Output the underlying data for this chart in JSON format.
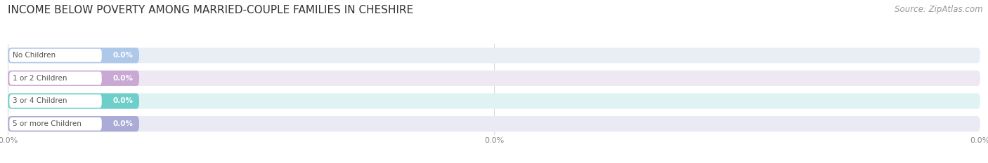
{
  "title": "INCOME BELOW POVERTY AMONG MARRIED-COUPLE FAMILIES IN CHESHIRE",
  "source": "Source: ZipAtlas.com",
  "categories": [
    "No Children",
    "1 or 2 Children",
    "3 or 4 Children",
    "5 or more Children"
  ],
  "values": [
    0.0,
    0.0,
    0.0,
    0.0
  ],
  "bar_colors": [
    "#adc8e8",
    "#c9a8d4",
    "#6ecfca",
    "#ababd8"
  ],
  "bar_bg_colors": [
    "#e8eef6",
    "#ede8f2",
    "#e0f3f3",
    "#eaeaf5"
  ],
  "background_color": "#ffffff",
  "title_fontsize": 11,
  "source_fontsize": 8.5,
  "fig_width": 14.06,
  "fig_height": 2.33,
  "xlim": [
    0,
    100
  ],
  "xtick_vals": [
    0,
    50,
    100
  ]
}
